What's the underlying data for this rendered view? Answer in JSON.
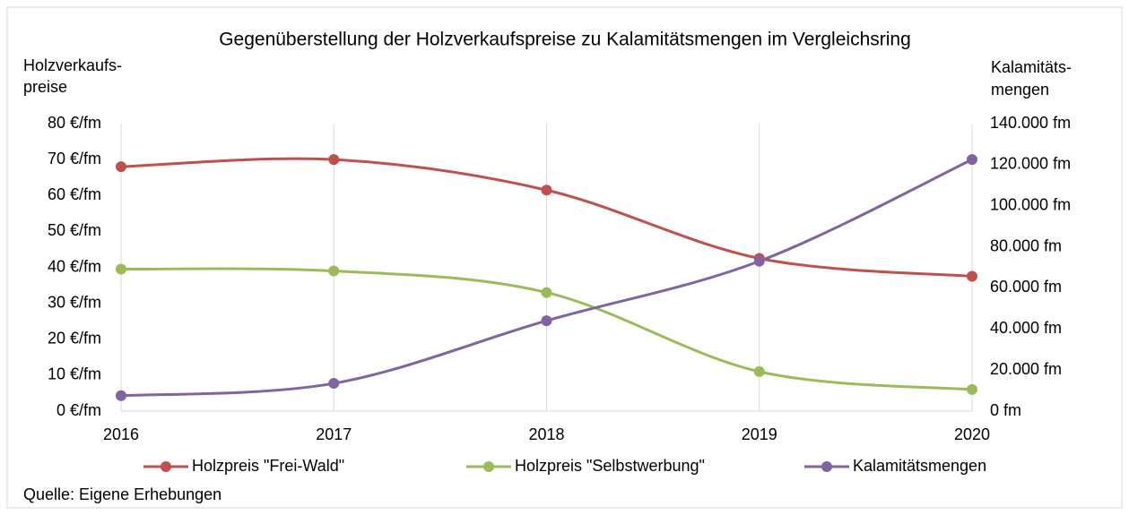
{
  "chart_data": {
    "type": "line",
    "title": "Gegenüberstellung der Holzverkaufspreise zu Kalamitätsmengen im Vergleichsring",
    "y_label": [
      "Holzverkaufs-",
      "preise"
    ],
    "y2_label": [
      "Kalamitäts-",
      "mengen"
    ],
    "source": "Quelle: Eigene Erhebungen",
    "categories": [
      "2016",
      "2017",
      "2018",
      "2019",
      "2020"
    ],
    "series": [
      {
        "name": "Holzpreis \"Frei-Wald\"",
        "color": "#c0504d",
        "values": [
          68,
          70,
          61.5,
          42.5,
          37.5
        ]
      },
      {
        "name": "Holzpreis \"Selbstwerbung\"",
        "color": "#9bbb59",
        "values": [
          39.5,
          39,
          33,
          11,
          6
        ]
      },
      {
        "name": "Kalamitätsmengen",
        "color": "#8064a2",
        "axis": "y2",
        "values": [
          7500,
          13500,
          44000,
          73000,
          122500
        ]
      }
    ],
    "ylim": [
      0,
      80
    ],
    "yticks": [
      {
        "value": 0,
        "label": "0 €/fm"
      },
      {
        "value": 10,
        "label": "10 €/fm"
      },
      {
        "value": 20,
        "label": "20 €/fm"
      },
      {
        "value": 30,
        "label": "30 €/fm"
      },
      {
        "value": 40,
        "label": "40 €/fm"
      },
      {
        "value": 50,
        "label": "50 €/fm"
      },
      {
        "value": 60,
        "label": "60 €/fm"
      },
      {
        "value": 70,
        "label": "70 €/fm"
      },
      {
        "value": 80,
        "label": "80 €/fm"
      }
    ],
    "y2lim": [
      0,
      140000
    ],
    "y2ticks": [
      {
        "value": 0,
        "label": "0 fm"
      },
      {
        "value": 20000,
        "label": "20.000 fm"
      },
      {
        "value": 40000,
        "label": "40.000 fm"
      },
      {
        "value": 60000,
        "label": "60.000 fm"
      },
      {
        "value": 80000,
        "label": "80.000 fm"
      },
      {
        "value": 100000,
        "label": "100.000 fm"
      },
      {
        "value": 120000,
        "label": "120.000 fm"
      },
      {
        "value": 140000,
        "label": "140.000 fm"
      }
    ],
    "grid": "x",
    "smooth": true,
    "legend": "bottom"
  }
}
